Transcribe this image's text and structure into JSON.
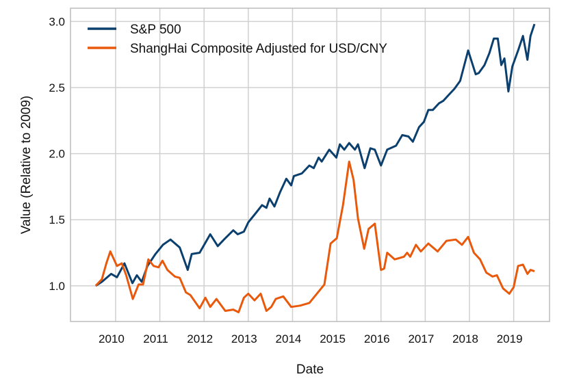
{
  "chart_data": {
    "type": "line",
    "xlabel": "Date",
    "ylabel": "Value (Relative to 2009)",
    "xlim": [
      2008.98,
      2019.81
    ],
    "ylim": [
      0.73,
      3.1
    ],
    "x_ticks": [
      2010,
      2011,
      2012,
      2013,
      2014,
      2015,
      2016,
      2017,
      2018,
      2019
    ],
    "x_tick_labels": [
      "2010",
      "2011",
      "2012",
      "2013",
      "2014",
      "2015",
      "2016",
      "2017",
      "2018",
      "2019"
    ],
    "y_ticks": [
      1.0,
      1.5,
      2.0,
      2.5,
      3.0
    ],
    "y_tick_labels": [
      "1.0",
      "1.5",
      "2.0",
      "2.5",
      "3.0"
    ],
    "grid": true,
    "legend_position": "top-left",
    "series": [
      {
        "name": "S&P 500",
        "color": "#0b3f6e",
        "x": [
          2009.55,
          2009.69,
          2009.9,
          2010.03,
          2010.2,
          2010.38,
          2010.48,
          2010.59,
          2010.72,
          2010.9,
          2011.07,
          2011.24,
          2011.45,
          2011.63,
          2011.72,
          2011.9,
          2012.14,
          2012.31,
          2012.45,
          2012.66,
          2012.76,
          2012.9,
          2013.0,
          2013.17,
          2013.31,
          2013.41,
          2013.48,
          2013.59,
          2013.72,
          2013.86,
          2013.97,
          2014.03,
          2014.21,
          2014.38,
          2014.48,
          2014.59,
          2014.66,
          2014.83,
          2014.99,
          2015.07,
          2015.17,
          2015.28,
          2015.41,
          2015.48,
          2015.63,
          2015.76,
          2015.86,
          2016.0,
          2016.14,
          2016.34,
          2016.48,
          2016.62,
          2016.72,
          2016.86,
          2016.97,
          2017.07,
          2017.17,
          2017.31,
          2017.41,
          2017.52,
          2017.66,
          2017.79,
          2017.97,
          2018.14,
          2018.21,
          2018.34,
          2018.45,
          2018.55,
          2018.64,
          2018.72,
          2018.79,
          2018.88,
          2018.97,
          2019.1,
          2019.21,
          2019.31,
          2019.38,
          2019.47
        ],
        "y": [
          1.0,
          1.03,
          1.09,
          1.065,
          1.17,
          1.02,
          1.08,
          1.03,
          1.15,
          1.24,
          1.31,
          1.35,
          1.29,
          1.12,
          1.24,
          1.25,
          1.39,
          1.3,
          1.35,
          1.42,
          1.39,
          1.41,
          1.48,
          1.55,
          1.61,
          1.59,
          1.66,
          1.6,
          1.71,
          1.81,
          1.76,
          1.83,
          1.85,
          1.91,
          1.89,
          1.97,
          1.94,
          2.03,
          1.97,
          2.07,
          2.03,
          2.08,
          2.03,
          2.07,
          1.89,
          2.04,
          2.03,
          1.91,
          2.03,
          2.06,
          2.14,
          2.13,
          2.09,
          2.2,
          2.24,
          2.33,
          2.33,
          2.38,
          2.4,
          2.44,
          2.49,
          2.55,
          2.78,
          2.6,
          2.61,
          2.67,
          2.76,
          2.87,
          2.87,
          2.67,
          2.72,
          2.47,
          2.66,
          2.78,
          2.89,
          2.71,
          2.89,
          2.98
        ]
      },
      {
        "name": "ShangHai Composite Adjusted for USD/CNY",
        "color": "#e8590c",
        "x": [
          2009.55,
          2009.69,
          2009.79,
          2009.88,
          2010.03,
          2010.14,
          2010.24,
          2010.39,
          2010.52,
          2010.62,
          2010.74,
          2010.86,
          2010.97,
          2011.06,
          2011.17,
          2011.34,
          2011.45,
          2011.59,
          2011.69,
          2011.9,
          2012.03,
          2012.14,
          2012.28,
          2012.48,
          2012.66,
          2012.78,
          2012.9,
          2013.0,
          2013.14,
          2013.28,
          2013.41,
          2013.52,
          2013.62,
          2013.79,
          2013.97,
          2014.17,
          2014.38,
          2014.55,
          2014.72,
          2014.86,
          2015.0,
          2015.14,
          2015.28,
          2015.38,
          2015.48,
          2015.62,
          2015.72,
          2015.86,
          2016.0,
          2016.07,
          2016.14,
          2016.31,
          2016.52,
          2016.59,
          2016.66,
          2016.79,
          2016.9,
          2017.07,
          2017.28,
          2017.48,
          2017.69,
          2017.83,
          2017.97,
          2018.1,
          2018.24,
          2018.38,
          2018.52,
          2018.62,
          2018.76,
          2018.9,
          2019.0,
          2019.1,
          2019.21,
          2019.31,
          2019.38,
          2019.47
        ],
        "y": [
          1.0,
          1.05,
          1.17,
          1.26,
          1.15,
          1.17,
          1.08,
          0.9,
          1.01,
          1.01,
          1.2,
          1.15,
          1.14,
          1.19,
          1.12,
          1.07,
          1.06,
          0.95,
          0.93,
          0.83,
          0.91,
          0.84,
          0.9,
          0.81,
          0.82,
          0.8,
          0.91,
          0.94,
          0.89,
          0.94,
          0.81,
          0.84,
          0.9,
          0.92,
          0.84,
          0.85,
          0.87,
          0.94,
          1.01,
          1.32,
          1.36,
          1.61,
          1.94,
          1.8,
          1.51,
          1.28,
          1.43,
          1.47,
          1.12,
          1.13,
          1.25,
          1.2,
          1.22,
          1.25,
          1.22,
          1.31,
          1.26,
          1.32,
          1.26,
          1.34,
          1.35,
          1.31,
          1.37,
          1.25,
          1.2,
          1.1,
          1.07,
          1.08,
          0.98,
          0.94,
          0.99,
          1.15,
          1.16,
          1.09,
          1.12,
          1.11
        ]
      }
    ]
  }
}
